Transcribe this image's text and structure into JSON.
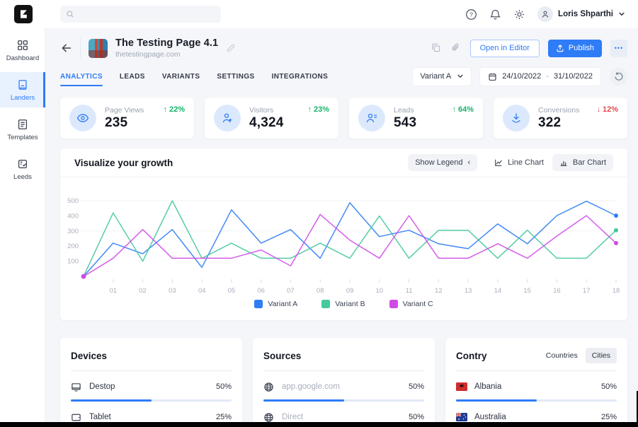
{
  "topbar": {
    "search_placeholder": "",
    "user_name": "Loris Shparthi"
  },
  "sidebar": {
    "items": [
      {
        "label": "Dashboard"
      },
      {
        "label": "Landers"
      },
      {
        "label": "Templates"
      },
      {
        "label": "Leeds"
      }
    ]
  },
  "page_header": {
    "title": "The Testing Page 4.1",
    "url": "thetestingpage.com",
    "open_in_editor_label": "Open in Editor",
    "publish_label": "Publish",
    "more_label": "•••"
  },
  "tabs": [
    {
      "label": "ANALYTICS"
    },
    {
      "label": "LEADS"
    },
    {
      "label": "VARIANTS"
    },
    {
      "label": "SETTINGS"
    },
    {
      "label": "INTEGRATIONS"
    }
  ],
  "filters": {
    "variant_selected": "Variant A",
    "date_start": "24/10/2022",
    "date_separator": "-",
    "date_end": "31/10/2022"
  },
  "stats": [
    {
      "label": "Page Views",
      "value": "235",
      "arrow": "↑",
      "delta": "22%"
    },
    {
      "label": "Visitors",
      "value": "4,324",
      "arrow": "↑",
      "delta": "23%"
    },
    {
      "label": "Leads",
      "value": "543",
      "arrow": "↑",
      "delta": "64%"
    },
    {
      "label": "Conversions",
      "value": "322",
      "arrow": "↓",
      "delta": "12%"
    }
  ],
  "growth": {
    "title": "Visualize your growth",
    "show_legend_label": "Show Legend",
    "show_legend_chevron": "‹",
    "line_chart_label": "Line Chart",
    "bar_chart_label": "Bar Chart"
  },
  "chart_data": {
    "type": "line",
    "title": "Visualize your growth",
    "categories": [
      "01",
      "02",
      "03",
      "04",
      "05",
      "06",
      "07",
      "08",
      "09",
      "10",
      "11",
      "12",
      "13",
      "14",
      "15",
      "16",
      "17",
      "18"
    ],
    "yticks": [
      100,
      200,
      300,
      400,
      500
    ],
    "ylim": [
      0,
      500
    ],
    "gridlines": [
      300,
      500
    ],
    "legend_position": "bottom",
    "series": [
      {
        "name": "Variant A",
        "color": "#2e7cf6",
        "values": [
          0,
          220,
          150,
          310,
          60,
          440,
          220,
          310,
          120,
          487,
          263,
          305,
          216,
          183,
          347,
          216,
          402,
          497,
          402
        ]
      },
      {
        "name": "Variant B",
        "color": "#45c89c",
        "values": [
          0,
          420,
          100,
          500,
          120,
          220,
          120,
          120,
          220,
          120,
          400,
          120,
          305,
          305,
          120,
          305,
          120,
          120,
          305
        ]
      },
      {
        "name": "Variant C",
        "color": "#cf4be8",
        "values": [
          0,
          120,
          310,
          120,
          120,
          120,
          175,
          70,
          410,
          240,
          120,
          402,
          120,
          120,
          216,
          120,
          267,
          402,
          220
        ]
      }
    ]
  },
  "breakdown": {
    "devices": {
      "title": "Devices",
      "rows": [
        {
          "label": "Destop",
          "pct": 50,
          "pct_label": "50%"
        },
        {
          "label": "Tablet",
          "pct": 25,
          "pct_label": "25%"
        }
      ]
    },
    "sources": {
      "title": "Sources",
      "rows": [
        {
          "label": "app.google.com",
          "pct": 50,
          "pct_label": "50%"
        },
        {
          "label": "Direct",
          "pct": 50,
          "pct_label": "50%"
        }
      ]
    },
    "country": {
      "title": "Contry",
      "toggle_countries": "Countries",
      "toggle_cities": "Cities",
      "rows": [
        {
          "label": "Albania",
          "pct": 50,
          "pct_label": "50%"
        },
        {
          "label": "Australia",
          "pct": 25,
          "pct_label": "25%"
        }
      ]
    }
  },
  "colors": {
    "accent": "#2e7cf6",
    "positive": "#17b26a",
    "negative": "#e5484d",
    "active_item_bg": "#e8f1fe",
    "main_bg": "#f5f6fa"
  }
}
